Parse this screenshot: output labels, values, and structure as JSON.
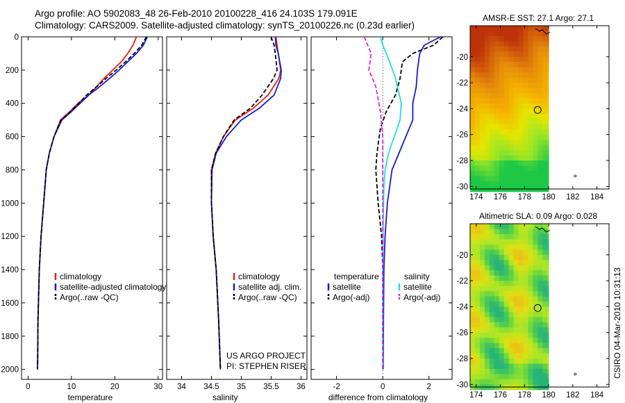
{
  "header": {
    "line1": "Argo profile: AO 5902083_48 26-Feb-2010 20100228_416 24.103S 179.091E",
    "line2": "Climatology: CARS2009. Satellite-adjusted climatology: synTS_20100226.nc (0.23d earlier)"
  },
  "stamp": "CSIRO 04-Mar-2010 10:31:13",
  "project": {
    "line1": "US ARGO PROJECT",
    "line2": "PI: STEPHEN RISER"
  },
  "colors": {
    "climatology": "#dd2211",
    "satellite": "#1a1acc",
    "argo": "#000000",
    "salinity_satellite": "#22dddd",
    "salinity_argo": "#dd22dd"
  },
  "chart_data": [
    {
      "type": "line",
      "xlabel": "temperature",
      "xlim": [
        -1.5,
        31
      ],
      "xticks": [
        0,
        10,
        20,
        30
      ],
      "ylim": [
        2060,
        0
      ],
      "yticks": [
        0,
        200,
        400,
        600,
        800,
        1000,
        1200,
        1400,
        1600,
        1800,
        2000
      ],
      "legend": [
        "climatology",
        "satellite-adjusted climatology",
        "Argo(..raw -QC)"
      ],
      "series": [
        {
          "name": "climatology",
          "style": "solid",
          "color": "#dd2211",
          "x": [
            25.0,
            24.2,
            23.0,
            21.5,
            19.5,
            17.5,
            15.8,
            14.0,
            11.5,
            9.6,
            7.5,
            6.0,
            4.9,
            4.2,
            3.6,
            3.0,
            2.6,
            2.3,
            2.2
          ],
          "y": [
            0,
            50,
            100,
            150,
            200,
            250,
            300,
            350,
            400,
            450,
            500,
            600,
            700,
            800,
            1000,
            1200,
            1400,
            1700,
            2000
          ]
        },
        {
          "name": "satellite-adjusted climatology",
          "style": "solid",
          "color": "#1a1acc",
          "x": [
            27.5,
            26.6,
            25.0,
            23.0,
            21.0,
            18.8,
            16.5,
            14.0,
            12.0,
            10.0,
            7.8,
            6.0,
            4.9,
            4.2,
            3.6,
            3.0,
            2.6,
            2.3,
            2.2
          ],
          "y": [
            0,
            50,
            100,
            150,
            200,
            250,
            300,
            350,
            400,
            450,
            500,
            600,
            700,
            800,
            1000,
            1200,
            1400,
            1700,
            2000
          ]
        },
        {
          "name": "Argo(..raw -QC)",
          "style": "dashed",
          "color": "#000000",
          "x": [
            27.3,
            26.2,
            24.5,
            22.5,
            20.3,
            18.0,
            15.8,
            13.5,
            11.7,
            9.8,
            7.6,
            6.0,
            4.9,
            4.2,
            3.6,
            3.0,
            2.6,
            2.3,
            2.2
          ],
          "y": [
            0,
            50,
            100,
            150,
            200,
            250,
            300,
            350,
            400,
            450,
            500,
            600,
            700,
            800,
            1000,
            1200,
            1400,
            1700,
            2000
          ]
        }
      ]
    },
    {
      "type": "line",
      "xlabel": "salinity",
      "xlim": [
        33.75,
        36.1
      ],
      "xticks": [
        34,
        34.5,
        35,
        35.5,
        36
      ],
      "ylim": [
        2060,
        0
      ],
      "legend": [
        "climatology",
        "satellite adj. clim.",
        "Argo(..raw -QC)"
      ],
      "series": [
        {
          "name": "climatology",
          "style": "solid",
          "color": "#dd2211",
          "x": [
            35.58,
            35.6,
            35.62,
            35.66,
            35.63,
            35.45,
            35.2,
            34.9,
            34.7,
            34.57,
            34.5,
            34.5,
            34.53,
            34.58,
            34.62,
            34.65
          ],
          "y": [
            0,
            50,
            100,
            200,
            250,
            350,
            430,
            500,
            600,
            700,
            800,
            1000,
            1200,
            1400,
            1700,
            2000
          ]
        },
        {
          "name": "satellite adj. clim.",
          "style": "solid",
          "color": "#1a1acc",
          "x": [
            35.57,
            35.58,
            35.62,
            35.67,
            35.66,
            35.55,
            35.3,
            35.0,
            34.75,
            34.58,
            34.51,
            34.5,
            34.53,
            34.58,
            34.62,
            34.65
          ],
          "y": [
            0,
            50,
            100,
            200,
            250,
            350,
            430,
            500,
            600,
            700,
            800,
            1000,
            1200,
            1400,
            1700,
            2000
          ]
        },
        {
          "name": "Argo(..raw -QC)",
          "style": "dashed",
          "color": "#000000",
          "x": [
            35.5,
            35.55,
            35.57,
            35.6,
            35.54,
            35.35,
            35.15,
            34.88,
            34.7,
            34.57,
            34.5,
            34.5,
            34.53,
            34.58,
            34.62,
            34.65
          ],
          "y": [
            0,
            50,
            100,
            200,
            250,
            350,
            430,
            500,
            600,
            700,
            800,
            1000,
            1200,
            1400,
            1700,
            2000
          ]
        }
      ]
    },
    {
      "type": "line",
      "xlabel": "difference from climatology",
      "xlim": [
        -3.1,
        3.0
      ],
      "xticks": [
        -2,
        0,
        2
      ],
      "ylim": [
        2060,
        0
      ],
      "legend_left": {
        "title": "temperature",
        "items": [
          "satellite",
          "Argo(-adj)"
        ]
      },
      "legend_right": {
        "title": "salinity",
        "items": [
          "satellite",
          "Argo(-adj)"
        ]
      },
      "series": [
        {
          "name": "temperature satellite",
          "style": "solid",
          "color": "#1a1acc",
          "x": [
            2.5,
            1.8,
            1.6,
            1.5,
            1.45,
            1.3,
            1.3,
            1.0,
            0.7,
            0.4,
            0.2,
            0.1,
            0.05,
            0.03,
            0.02
          ],
          "y": [
            0,
            50,
            100,
            200,
            300,
            400,
            500,
            600,
            700,
            800,
            1000,
            1200,
            1400,
            1700,
            2000
          ]
        },
        {
          "name": "temperature Argo(-adj)",
          "style": "dashed",
          "color": "#000000",
          "x": [
            2.6,
            2.2,
            1.3,
            0.85,
            0.75,
            0.55,
            0.15,
            -0.1,
            -0.25,
            -0.3,
            -0.2,
            -0.05,
            0.0,
            0.0,
            0.0
          ],
          "y": [
            0,
            50,
            100,
            150,
            250,
            350,
            450,
            550,
            700,
            800,
            1000,
            1200,
            1400,
            1700,
            2000
          ]
        },
        {
          "name": "salinity satellite",
          "style": "solid",
          "color": "#22dddd",
          "x": [
            -0.1,
            0.0,
            0.3,
            0.55,
            0.8,
            0.75,
            0.5,
            0.25,
            0.1,
            0.05,
            0.02,
            0.0,
            0.0,
            0.0
          ],
          "y": [
            0,
            50,
            150,
            250,
            400,
            500,
            600,
            700,
            800,
            900,
            1100,
            1400,
            1700,
            2000
          ]
        },
        {
          "name": "salinity Argo(-adj)",
          "style": "dashed",
          "color": "#dd22dd",
          "x": [
            -0.8,
            -0.5,
            -0.6,
            -0.3,
            -0.1,
            0.0,
            0.0,
            0.0
          ],
          "y": [
            0,
            100,
            200,
            300,
            450,
            600,
            800,
            2000
          ]
        }
      ]
    },
    {
      "type": "heatmap",
      "title": "AMSR-E SST: 27.1 Argo: 27.1",
      "xlim": [
        173.5,
        185
      ],
      "ylim": [
        -30.2,
        -17.6
      ],
      "xticks": [
        174,
        176,
        178,
        180,
        182,
        184
      ],
      "yticks": [
        -20,
        -22,
        -24,
        -26,
        -28,
        -30
      ],
      "argo_position": {
        "lon": 179.091,
        "lat": -24.103
      },
      "data_extent_lon": [
        174,
        180
      ]
    },
    {
      "type": "heatmap",
      "title": "Altimetric SLA: 0.09 Argo: 0.028",
      "xlim": [
        173.5,
        185
      ],
      "ylim": [
        -30.2,
        -17.6
      ],
      "xticks": [
        174,
        176,
        178,
        180,
        182,
        184
      ],
      "yticks": [
        -20,
        -22,
        -24,
        -26,
        -28,
        -30
      ],
      "argo_position": {
        "lon": 179.091,
        "lat": -24.103
      },
      "data_extent_lon": [
        174,
        180
      ]
    }
  ]
}
